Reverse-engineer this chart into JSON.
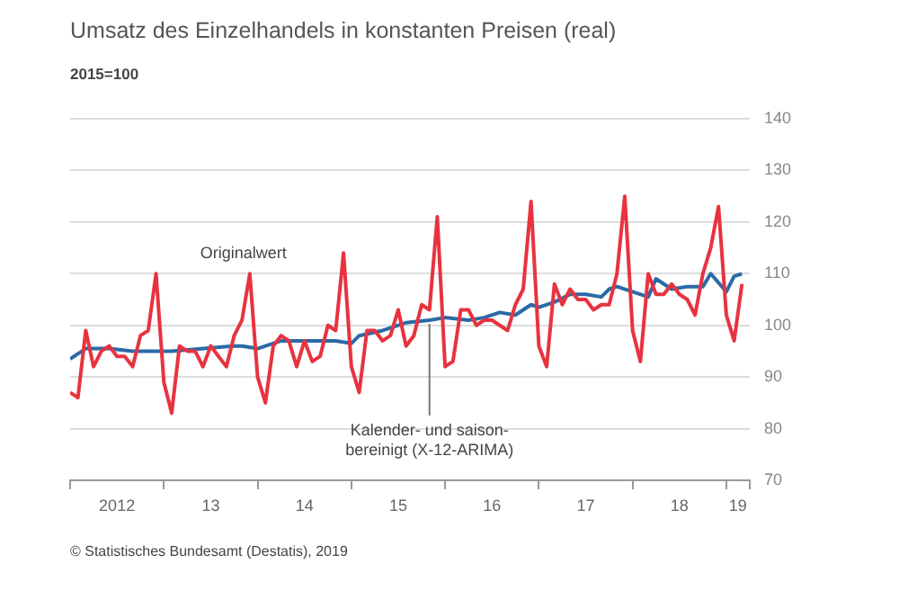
{
  "chart_data": {
    "type": "line",
    "title": "Umsatz des Einzelhandels in konstanten Preisen (real)",
    "subtitle": "2015=100",
    "x": [
      "2012-01",
      "2012-02",
      "2012-03",
      "2012-04",
      "2012-05",
      "2012-06",
      "2012-07",
      "2012-08",
      "2012-09",
      "2012-10",
      "2012-11",
      "2012-12",
      "2013-01",
      "2013-02",
      "2013-03",
      "2013-04",
      "2013-05",
      "2013-06",
      "2013-07",
      "2013-08",
      "2013-09",
      "2013-10",
      "2013-11",
      "2013-12",
      "2014-01",
      "2014-02",
      "2014-03",
      "2014-04",
      "2014-05",
      "2014-06",
      "2014-07",
      "2014-08",
      "2014-09",
      "2014-10",
      "2014-11",
      "2014-12",
      "2015-01",
      "2015-02",
      "2015-03",
      "2015-04",
      "2015-05",
      "2015-06",
      "2015-07",
      "2015-08",
      "2015-09",
      "2015-10",
      "2015-11",
      "2015-12",
      "2016-01",
      "2016-02",
      "2016-03",
      "2016-04",
      "2016-05",
      "2016-06",
      "2016-07",
      "2016-08",
      "2016-09",
      "2016-10",
      "2016-11",
      "2016-12",
      "2017-01",
      "2017-02",
      "2017-03",
      "2017-04",
      "2017-05",
      "2017-06",
      "2017-07",
      "2017-08",
      "2017-09",
      "2017-10",
      "2017-11",
      "2017-12",
      "2018-01",
      "2018-02",
      "2018-03",
      "2018-04",
      "2018-05",
      "2018-06",
      "2018-07",
      "2018-08",
      "2018-09",
      "2018-10",
      "2018-11",
      "2018-12",
      "2019-01",
      "2019-02",
      "2019-03"
    ],
    "series": [
      {
        "color": "#e8333f",
        "values": [
          87,
          86,
          99,
          92,
          95,
          96,
          94,
          94,
          92,
          98,
          99,
          110,
          89,
          83,
          96,
          95,
          95,
          92,
          96,
          94,
          92,
          98,
          101,
          110,
          90,
          85,
          96,
          98,
          97,
          92,
          97,
          93,
          94,
          100,
          99,
          114,
          92,
          87,
          99,
          99,
          97,
          98,
          103,
          96,
          98,
          104,
          103,
          121,
          92,
          93,
          103,
          103,
          100,
          101,
          101,
          100,
          99,
          104,
          107,
          124,
          96,
          92,
          108,
          104,
          107,
          105,
          105,
          103,
          104,
          104,
          110,
          125,
          99,
          93,
          110,
          106,
          106,
          108,
          106,
          105,
          102,
          110,
          115,
          123,
          102,
          97,
          108
        ]
      },
      {
        "color": "#2a6aa6",
        "x": [
          "2012-01",
          "2012-03",
          "2012-06",
          "2012-09",
          "2013-02",
          "2013-10",
          "2013-11",
          "2014-01",
          "2014-04",
          "2014-06",
          "2014-08",
          "2014-11",
          "2015-01",
          "2015-02",
          "2015-05",
          "2015-08",
          "2015-11",
          "2016-01",
          "2016-04",
          "2016-06",
          "2016-08",
          "2016-10",
          "2016-12",
          "2017-01",
          "2017-03",
          "2017-05",
          "2017-07",
          "2017-09",
          "2017-10",
          "2017-11",
          "2018-03",
          "2018-04",
          "2018-06",
          "2018-08",
          "2018-10",
          "2018-11",
          "2019-01",
          "2019-02",
          "2019-03"
        ],
        "values": [
          93.5,
          95.5,
          95.5,
          95,
          95,
          96,
          96,
          95.5,
          97,
          97,
          97,
          97,
          96.5,
          98,
          99,
          100.5,
          101,
          101.5,
          101,
          101.5,
          102.5,
          102,
          104,
          103.5,
          104.5,
          106,
          106,
          105.5,
          107,
          107.5,
          105.5,
          109,
          107,
          107.5,
          107.5,
          110,
          106.5,
          109.5,
          110
        ]
      }
    ],
    "xlim": [
      "2012-01",
      "2019-04"
    ],
    "xticks": [
      {
        "value": "2012-01",
        "label": null
      },
      {
        "value": "2012-07",
        "label": "2012"
      },
      {
        "value": "2013-01",
        "label": null
      },
      {
        "value": "2013-07",
        "label": "13"
      },
      {
        "value": "2014-01",
        "label": null
      },
      {
        "value": "2014-07",
        "label": "14"
      },
      {
        "value": "2015-01",
        "label": null
      },
      {
        "value": "2015-07",
        "label": "15"
      },
      {
        "value": "2016-01",
        "label": null
      },
      {
        "value": "2016-07",
        "label": "16"
      },
      {
        "value": "2017-01",
        "label": null
      },
      {
        "value": "2017-07",
        "label": "17"
      },
      {
        "value": "2018-01",
        "label": null
      },
      {
        "value": "2018-07",
        "label": "18"
      },
      {
        "value": "2019-01",
        "label": null
      },
      {
        "value": "2019-02-15",
        "label": "19"
      },
      {
        "value": "2019-04",
        "label": null
      }
    ],
    "ylim": [
      70,
      140
    ],
    "yticks": [
      70,
      80,
      90,
      100,
      110,
      120,
      130,
      140
    ],
    "grid": "y",
    "marker": "none",
    "line_style": "solid",
    "legend": false,
    "annotations": [
      {
        "text": "Kalender- und saison-\nbereinigt (X-12-ARIMA)",
        "x": "2015-11",
        "y": 101
      },
      "Originalwert",
      "© Statistisches Bundesamt (Destatis), 2019"
    ]
  }
}
